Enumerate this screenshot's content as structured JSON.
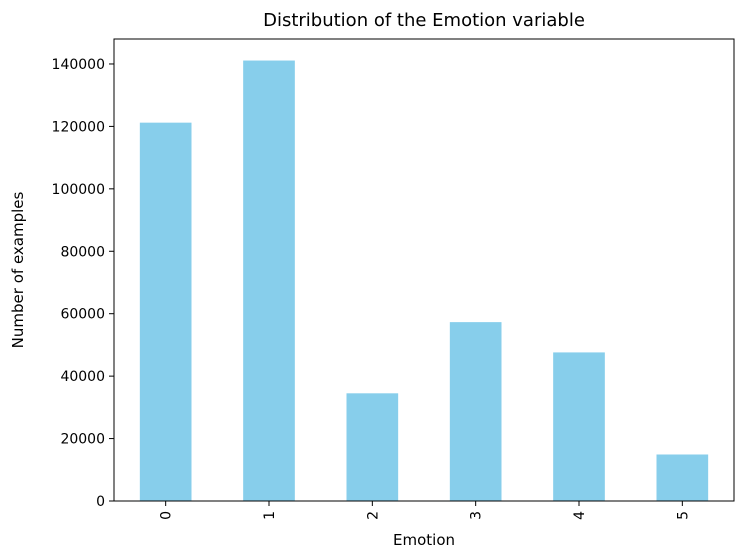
{
  "chart_data": {
    "type": "bar",
    "title": "Distribution of the Emotion variable",
    "xlabel": "Emotion",
    "ylabel": "Number of examples",
    "categories": [
      "0",
      "1",
      "2",
      "3",
      "4",
      "5"
    ],
    "values": [
      121200,
      141100,
      34500,
      57300,
      47600,
      14900
    ],
    "ylim": [
      0,
      148000
    ],
    "yticks": [
      0,
      20000,
      40000,
      60000,
      80000,
      100000,
      120000,
      140000
    ],
    "bar_color": "#87CEEB",
    "grid": false,
    "legend": "none"
  }
}
